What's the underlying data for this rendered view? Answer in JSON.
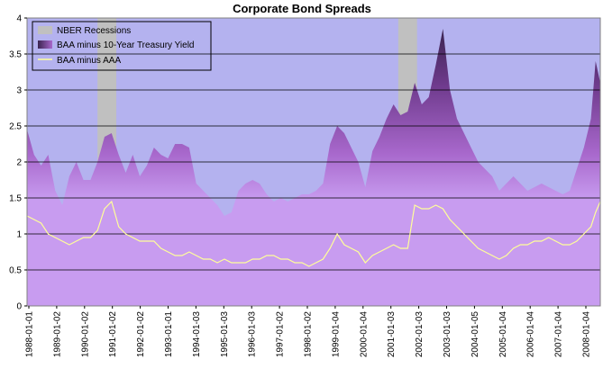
{
  "chart_data": {
    "type": "area",
    "title": "Corporate Bond Spreads",
    "xlabel": "",
    "ylabel": "",
    "ylim": [
      0,
      4
    ],
    "yticks": [
      0,
      0.5,
      1,
      1.5,
      2,
      2.5,
      3,
      3.5,
      4
    ],
    "ytick_labels": [
      "0",
      "0.5",
      "1",
      "1.5",
      "2",
      "2.5",
      "3",
      "3.5",
      "4"
    ],
    "xlim": [
      "1988-01",
      "2008-05"
    ],
    "xtick_labels": [
      "1988-01-01",
      "1989-01-02",
      "1990-01-02",
      "1991-01-02",
      "1992-01-02",
      "1993-01-01",
      "1994-01-03",
      "1995-01-03",
      "1996-01-03",
      "1997-01-02",
      "1998-01-02",
      "1999-01-04",
      "2000-01-04",
      "2001-01-03",
      "2002-01-03",
      "2003-01-03",
      "2004-01-05",
      "2005-01-04",
      "2006-01-04",
      "2007-01-04",
      "2008-01-04"
    ],
    "grid": "horizontal",
    "legend_position": "top-left",
    "colors": {
      "plot_background": "#b4b2ef",
      "recession": "#c0c0c0",
      "baa_fill_light": "#c89cf0",
      "baa_fill_dark": "#6e3a8c",
      "aaa_line": "#ffff99"
    },
    "series": [
      {
        "name": "NBER Recessions",
        "kind": "shaded-period",
        "periods": [
          [
            "1990-07",
            "1991-03"
          ],
          [
            "2001-03",
            "2001-11"
          ]
        ]
      },
      {
        "name": "BAA minus 10-Year Treasury Yield",
        "kind": "area",
        "points": [
          [
            "1988-01",
            2.45
          ],
          [
            "1988-04",
            2.1
          ],
          [
            "1988-07",
            1.95
          ],
          [
            "1988-10",
            2.1
          ],
          [
            "1989-01",
            1.6
          ],
          [
            "1989-04",
            1.4
          ],
          [
            "1989-07",
            1.8
          ],
          [
            "1989-10",
            2.0
          ],
          [
            "1990-01",
            1.75
          ],
          [
            "1990-04",
            1.75
          ],
          [
            "1990-07",
            2.0
          ],
          [
            "1990-10",
            2.35
          ],
          [
            "1991-01",
            2.4
          ],
          [
            "1991-04",
            2.1
          ],
          [
            "1991-07",
            1.85
          ],
          [
            "1991-10",
            2.1
          ],
          [
            "1992-01",
            1.8
          ],
          [
            "1992-04",
            1.95
          ],
          [
            "1992-07",
            2.2
          ],
          [
            "1992-10",
            2.1
          ],
          [
            "1993-01",
            2.05
          ],
          [
            "1993-04",
            2.25
          ],
          [
            "1993-07",
            2.25
          ],
          [
            "1993-10",
            2.2
          ],
          [
            "1994-01",
            1.7
          ],
          [
            "1994-04",
            1.6
          ],
          [
            "1994-07",
            1.5
          ],
          [
            "1994-10",
            1.4
          ],
          [
            "1995-01",
            1.25
          ],
          [
            "1995-04",
            1.3
          ],
          [
            "1995-07",
            1.6
          ],
          [
            "1995-10",
            1.7
          ],
          [
            "1996-01",
            1.75
          ],
          [
            "1996-04",
            1.7
          ],
          [
            "1996-07",
            1.55
          ],
          [
            "1996-10",
            1.45
          ],
          [
            "1997-01",
            1.5
          ],
          [
            "1997-04",
            1.45
          ],
          [
            "1997-07",
            1.5
          ],
          [
            "1997-10",
            1.55
          ],
          [
            "1998-01",
            1.55
          ],
          [
            "1998-04",
            1.6
          ],
          [
            "1998-07",
            1.7
          ],
          [
            "1998-10",
            2.25
          ],
          [
            "1999-01",
            2.5
          ],
          [
            "1999-04",
            2.4
          ],
          [
            "1999-07",
            2.2
          ],
          [
            "1999-10",
            2.0
          ],
          [
            "2000-01",
            1.65
          ],
          [
            "2000-04",
            2.15
          ],
          [
            "2000-07",
            2.35
          ],
          [
            "2000-10",
            2.6
          ],
          [
            "2001-01",
            2.8
          ],
          [
            "2001-04",
            2.65
          ],
          [
            "2001-07",
            2.7
          ],
          [
            "2001-10",
            3.1
          ],
          [
            "2002-01",
            2.8
          ],
          [
            "2002-04",
            2.9
          ],
          [
            "2002-07",
            3.35
          ],
          [
            "2002-10",
            3.85
          ],
          [
            "2003-01",
            3.0
          ],
          [
            "2003-04",
            2.6
          ],
          [
            "2003-07",
            2.4
          ],
          [
            "2003-10",
            2.2
          ],
          [
            "2004-01",
            2.0
          ],
          [
            "2004-04",
            1.9
          ],
          [
            "2004-07",
            1.8
          ],
          [
            "2004-10",
            1.6
          ],
          [
            "2005-01",
            1.7
          ],
          [
            "2005-04",
            1.8
          ],
          [
            "2005-07",
            1.7
          ],
          [
            "2005-10",
            1.6
          ],
          [
            "2006-01",
            1.65
          ],
          [
            "2006-04",
            1.7
          ],
          [
            "2006-07",
            1.65
          ],
          [
            "2006-10",
            1.6
          ],
          [
            "2007-01",
            1.55
          ],
          [
            "2007-04",
            1.6
          ],
          [
            "2007-07",
            1.9
          ],
          [
            "2007-10",
            2.2
          ],
          [
            "2008-01",
            2.6
          ],
          [
            "2008-03",
            3.4
          ],
          [
            "2008-05",
            3.1
          ]
        ]
      },
      {
        "name": "BAA minus AAA",
        "kind": "line",
        "points": [
          [
            "1988-01",
            1.25
          ],
          [
            "1988-04",
            1.2
          ],
          [
            "1988-07",
            1.15
          ],
          [
            "1988-10",
            1.0
          ],
          [
            "1989-01",
            0.95
          ],
          [
            "1989-04",
            0.9
          ],
          [
            "1989-07",
            0.85
          ],
          [
            "1989-10",
            0.9
          ],
          [
            "1990-01",
            0.95
          ],
          [
            "1990-04",
            0.95
          ],
          [
            "1990-07",
            1.05
          ],
          [
            "1990-10",
            1.35
          ],
          [
            "1991-01",
            1.45
          ],
          [
            "1991-04",
            1.1
          ],
          [
            "1991-07",
            1.0
          ],
          [
            "1991-10",
            0.95
          ],
          [
            "1992-01",
            0.9
          ],
          [
            "1992-04",
            0.9
          ],
          [
            "1992-07",
            0.9
          ],
          [
            "1992-10",
            0.8
          ],
          [
            "1993-01",
            0.75
          ],
          [
            "1993-04",
            0.7
          ],
          [
            "1993-07",
            0.7
          ],
          [
            "1993-10",
            0.75
          ],
          [
            "1994-01",
            0.7
          ],
          [
            "1994-04",
            0.65
          ],
          [
            "1994-07",
            0.65
          ],
          [
            "1994-10",
            0.6
          ],
          [
            "1995-01",
            0.65
          ],
          [
            "1995-04",
            0.6
          ],
          [
            "1995-07",
            0.6
          ],
          [
            "1995-10",
            0.6
          ],
          [
            "1996-01",
            0.65
          ],
          [
            "1996-04",
            0.65
          ],
          [
            "1996-07",
            0.7
          ],
          [
            "1996-10",
            0.7
          ],
          [
            "1997-01",
            0.65
          ],
          [
            "1997-04",
            0.65
          ],
          [
            "1997-07",
            0.6
          ],
          [
            "1997-10",
            0.6
          ],
          [
            "1998-01",
            0.55
          ],
          [
            "1998-04",
            0.6
          ],
          [
            "1998-07",
            0.65
          ],
          [
            "1998-10",
            0.8
          ],
          [
            "1999-01",
            1.0
          ],
          [
            "1999-04",
            0.85
          ],
          [
            "1999-07",
            0.8
          ],
          [
            "1999-10",
            0.75
          ],
          [
            "2000-01",
            0.6
          ],
          [
            "2000-04",
            0.7
          ],
          [
            "2000-07",
            0.75
          ],
          [
            "2000-10",
            0.8
          ],
          [
            "2001-01",
            0.85
          ],
          [
            "2001-04",
            0.8
          ],
          [
            "2001-07",
            0.8
          ],
          [
            "2001-10",
            1.4
          ],
          [
            "2002-01",
            1.35
          ],
          [
            "2002-04",
            1.35
          ],
          [
            "2002-07",
            1.4
          ],
          [
            "2002-10",
            1.35
          ],
          [
            "2003-01",
            1.2
          ],
          [
            "2003-04",
            1.1
          ],
          [
            "2003-07",
            1.0
          ],
          [
            "2003-10",
            0.9
          ],
          [
            "2004-01",
            0.8
          ],
          [
            "2004-04",
            0.75
          ],
          [
            "2004-07",
            0.7
          ],
          [
            "2004-10",
            0.65
          ],
          [
            "2005-01",
            0.7
          ],
          [
            "2005-04",
            0.8
          ],
          [
            "2005-07",
            0.85
          ],
          [
            "2005-10",
            0.85
          ],
          [
            "2006-01",
            0.9
          ],
          [
            "2006-04",
            0.9
          ],
          [
            "2006-07",
            0.95
          ],
          [
            "2006-10",
            0.9
          ],
          [
            "2007-01",
            0.85
          ],
          [
            "2007-04",
            0.85
          ],
          [
            "2007-07",
            0.9
          ],
          [
            "2007-10",
            1.0
          ],
          [
            "2008-01",
            1.1
          ],
          [
            "2008-03",
            1.3
          ],
          [
            "2008-05",
            1.45
          ]
        ]
      }
    ]
  }
}
